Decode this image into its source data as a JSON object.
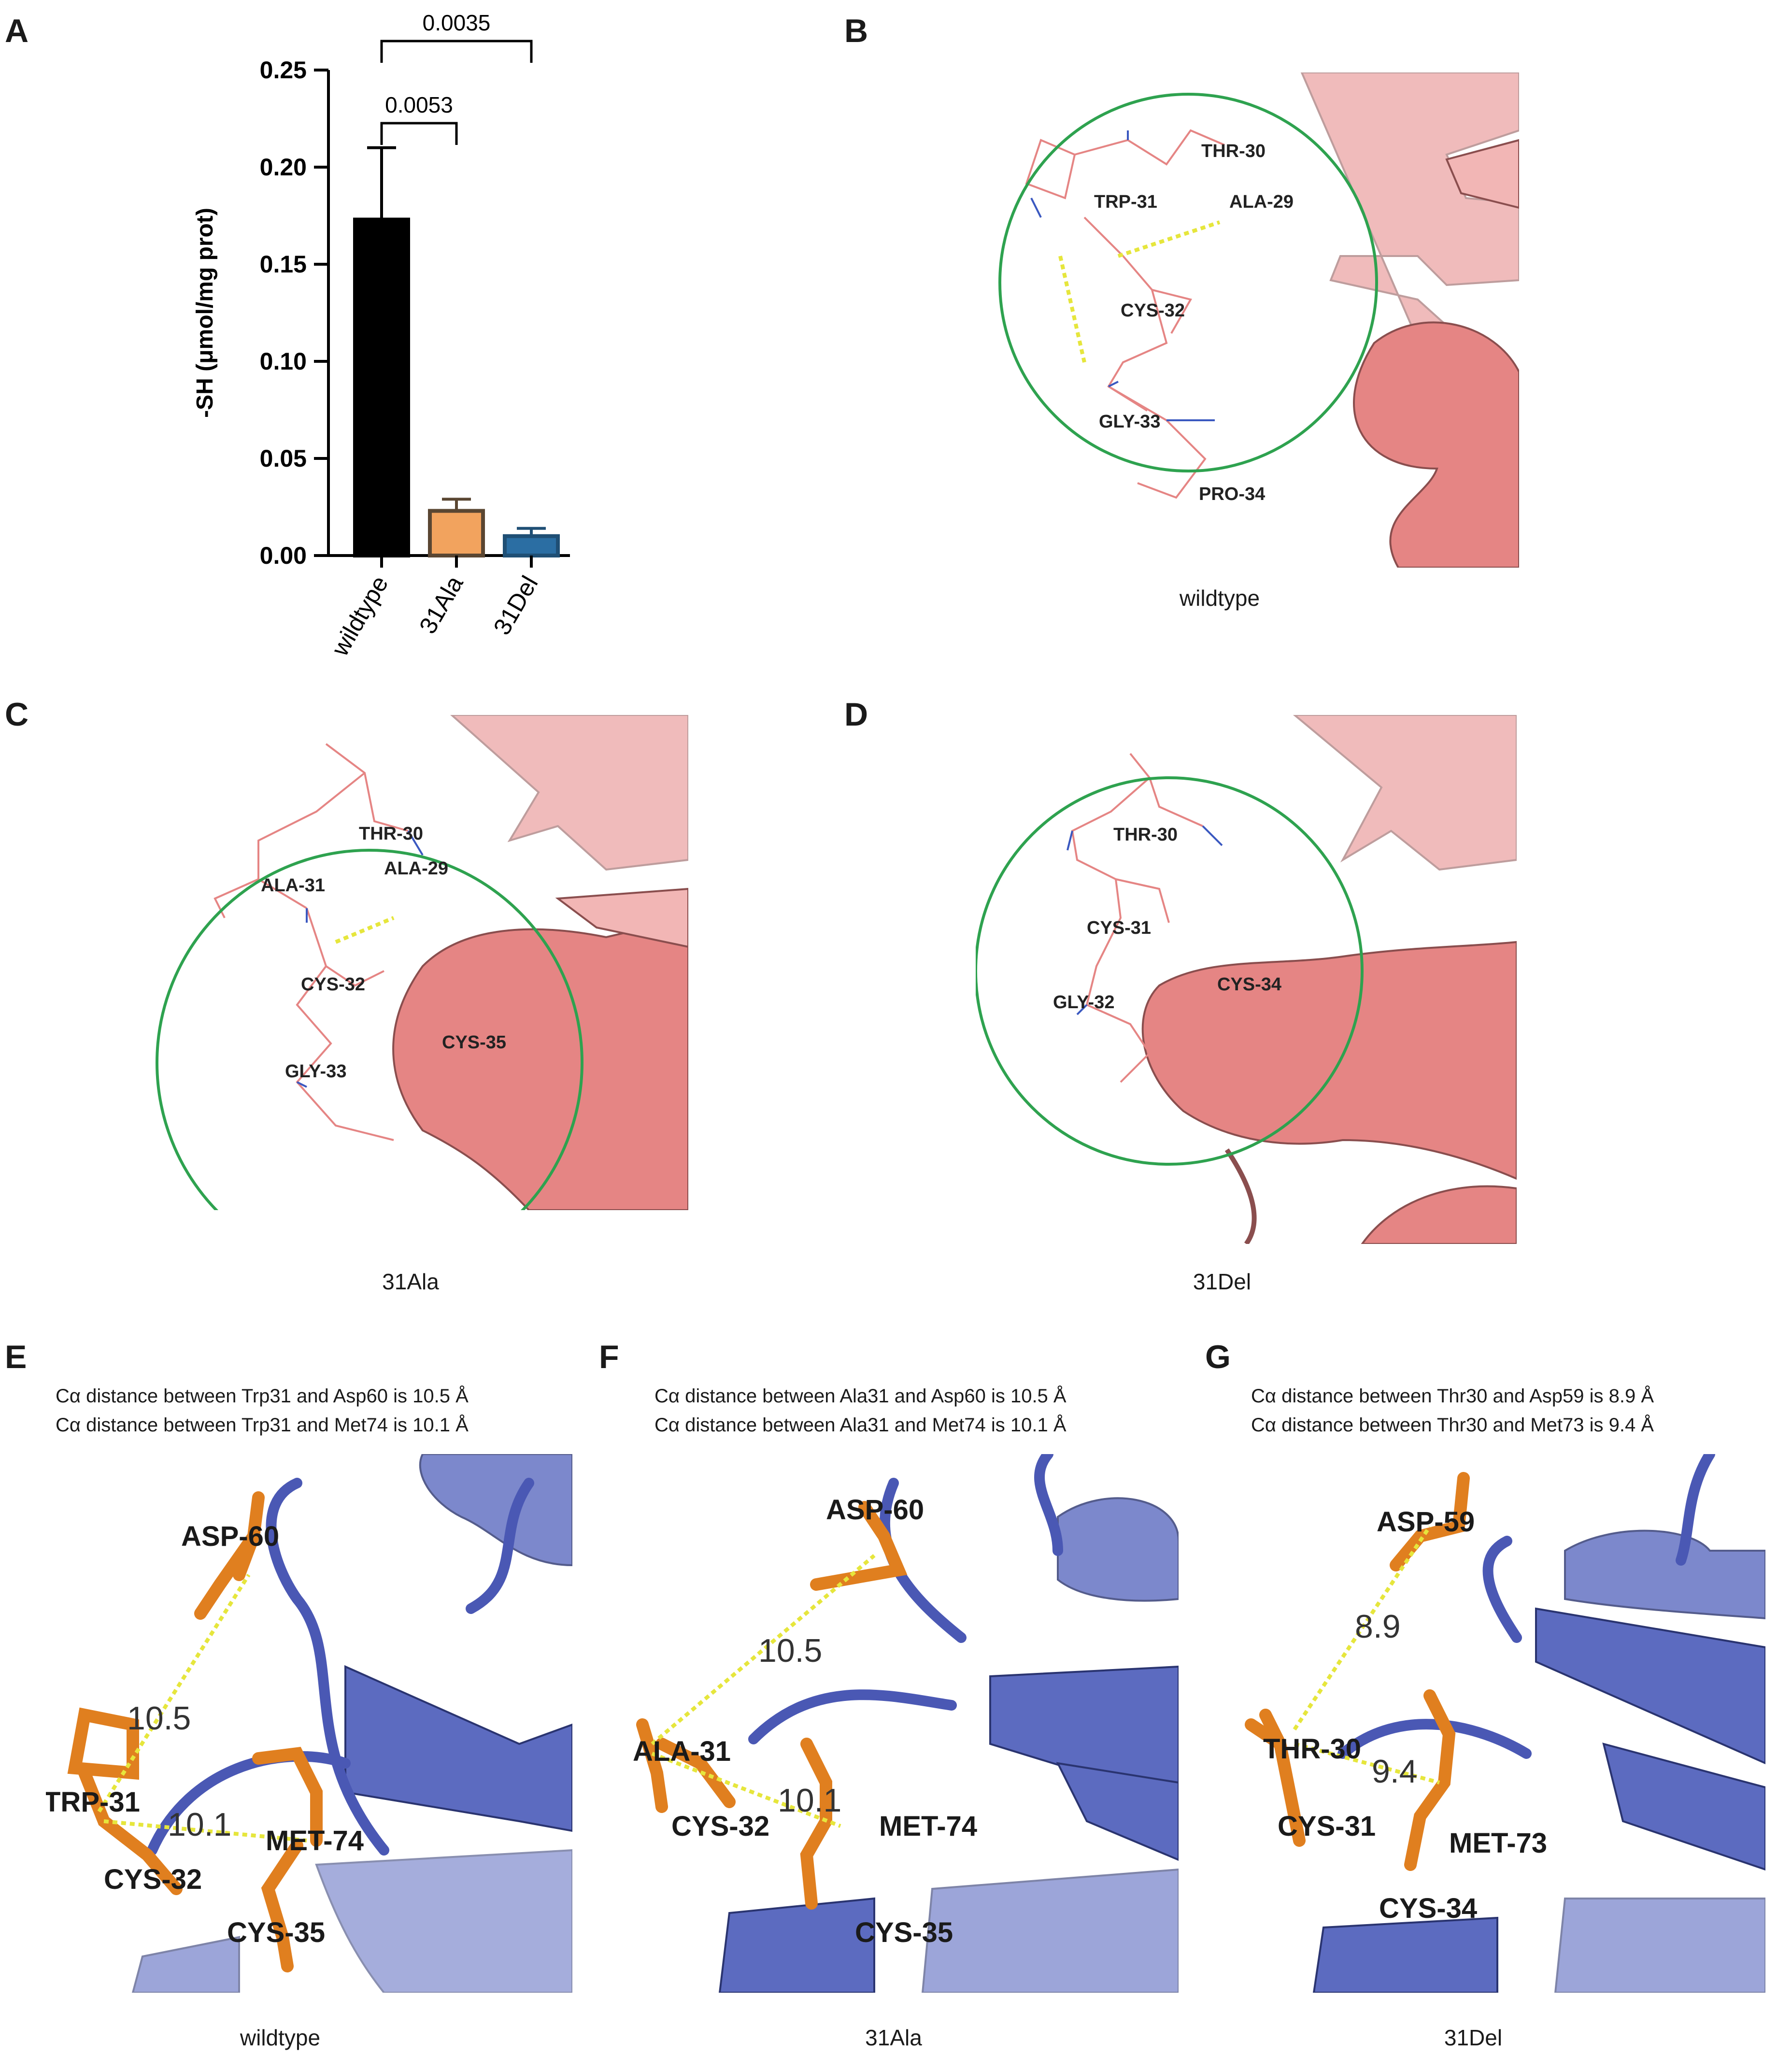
{
  "panels": {
    "A": {
      "letter": "A",
      "chart_data": {
        "type": "bar",
        "categories": [
          "wildtype",
          "31Ala",
          "31Del"
        ],
        "values": [
          0.173,
          0.023,
          0.01
        ],
        "errors": [
          0.037,
          0.006,
          0.004
        ],
        "colors": [
          "#000000",
          "#f2a35e",
          "#2b6ea3"
        ],
        "edge_colors": [
          "#000000",
          "#5a4632",
          "#1f4f75"
        ],
        "ylabel": "-SH (μmol/mg prot)",
        "ylim": [
          0,
          0.25
        ],
        "yticks": [
          "0.00",
          "0.05",
          "0.10",
          "0.15",
          "0.20",
          "0.25"
        ],
        "brackets": [
          {
            "from": "wildtype",
            "to": "31Ala",
            "label": "0.0053"
          },
          {
            "from": "wildtype",
            "to": "31Del",
            "label": "0.0035"
          }
        ]
      }
    },
    "B": {
      "letter": "B",
      "caption": "wildtype",
      "labels": [
        "THR-30",
        "TRP-31",
        "ALA-29",
        "CYS-32",
        "GLY-33",
        "PRO-34"
      ]
    },
    "C": {
      "letter": "C",
      "caption": "31Ala",
      "labels": [
        "THR-30",
        "ALA-29",
        "ALA-31",
        "CYS-32",
        "CYS-35",
        "GLY-33"
      ]
    },
    "D": {
      "letter": "D",
      "caption": "31Del",
      "labels": [
        "THR-30",
        "CYS-31",
        "GLY-32",
        "CYS-34"
      ]
    },
    "E": {
      "letter": "E",
      "caption": "wildtype",
      "note1": "Cα distance between Trp31 and Asp60 is 10.5 Å",
      "note2": "Cα distance between Trp31 and Met74 is 10.1 Å",
      "labels": [
        "ASP-60",
        "TRP-31",
        "MET-74",
        "CYS-32",
        "CYS-35"
      ],
      "distances": [
        "10.5",
        "10.1"
      ]
    },
    "F": {
      "letter": "F",
      "caption": "31Ala",
      "note1": "Cα distance between Ala31 and Asp60 is 10.5 Å",
      "note2": "Cα distance between Ala31 and Met74 is 10.1 Å",
      "labels": [
        "ASP-60",
        "ALA-31",
        "CYS-32",
        "MET-74",
        "CYS-35"
      ],
      "distances": [
        "10.5",
        "10.1"
      ]
    },
    "G": {
      "letter": "G",
      "caption": "31Del",
      "note1": "Cα distance between Thr30 and Asp59 is 8.9 Å",
      "note2": "Cα distance between Thr30 and Met73 is 9.4 Å",
      "labels": [
        "ASP-59",
        "THR-30",
        "CYS-31",
        "MET-73",
        "CYS-34"
      ],
      "distances": [
        "8.9",
        "9.4"
      ]
    }
  }
}
